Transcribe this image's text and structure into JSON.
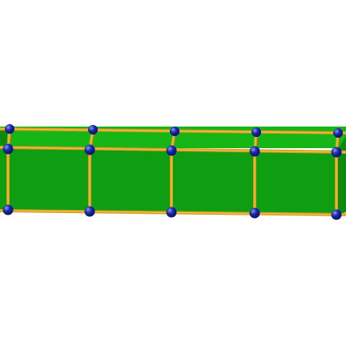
{
  "figure": {
    "subject": "prism-chain",
    "cells": [
      "cell-1",
      "cell-2",
      "cell-3",
      "cell-4"
    ]
  },
  "colors": {
    "background": "#ffffff",
    "face_top": "#17b617",
    "face_side": "#0f9e12",
    "face_end": "#0b8a0e",
    "edge": "#d69a1c",
    "edge_highlight": "#f2c24a",
    "vertex": "#1a2aa8",
    "vertex_highlight": "#8c96ff",
    "vertex_shadow": "#0a1060"
  }
}
